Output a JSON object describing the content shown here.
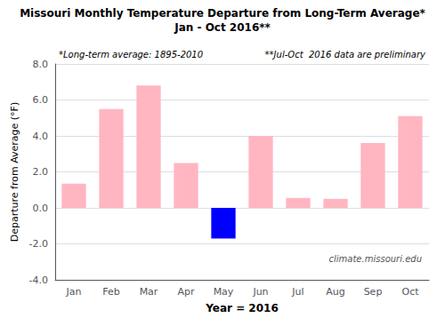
{
  "chart_data": {
    "type": "bar",
    "title": "Missouri Monthly Temperature Departure from Long-Term Average*",
    "subtitle": "Jan - Oct 2016**",
    "xlabel": "Year = 2016",
    "ylabel": "Departure from Average (°F)",
    "categories": [
      "Jan",
      "Feb",
      "Mar",
      "Apr",
      "May",
      "Jun",
      "Jul",
      "Aug",
      "Sep",
      "Oct"
    ],
    "values": [
      1.35,
      5.5,
      6.8,
      2.5,
      -1.7,
      4.0,
      0.55,
      0.5,
      3.6,
      5.1
    ],
    "colors": [
      "#FFB6C1",
      "#FFB6C1",
      "#FFB6C1",
      "#FFB6C1",
      "#0000FF",
      "#FFB6C1",
      "#FFB6C1",
      "#FFB6C1",
      "#FFB6C1",
      "#FFB6C1"
    ],
    "ylim": [
      -4.0,
      8.0
    ],
    "yticks": [
      {
        "value": -4.0,
        "label": "-4.0"
      },
      {
        "value": -2.0,
        "label": "-2.0"
      },
      {
        "value": 0.0,
        "label": "0.0"
      },
      {
        "value": 2.0,
        "label": "2.0"
      },
      {
        "value": 4.0,
        "label": "4.0"
      },
      {
        "value": 6.0,
        "label": "6.0"
      },
      {
        "value": 8.0,
        "label": "8.0"
      }
    ],
    "grid": true,
    "annotations": [
      "*Long-term average: 1895-2010",
      "**Jul-Oct  2016 data are preliminary",
      "climate.missouri.edu"
    ]
  }
}
